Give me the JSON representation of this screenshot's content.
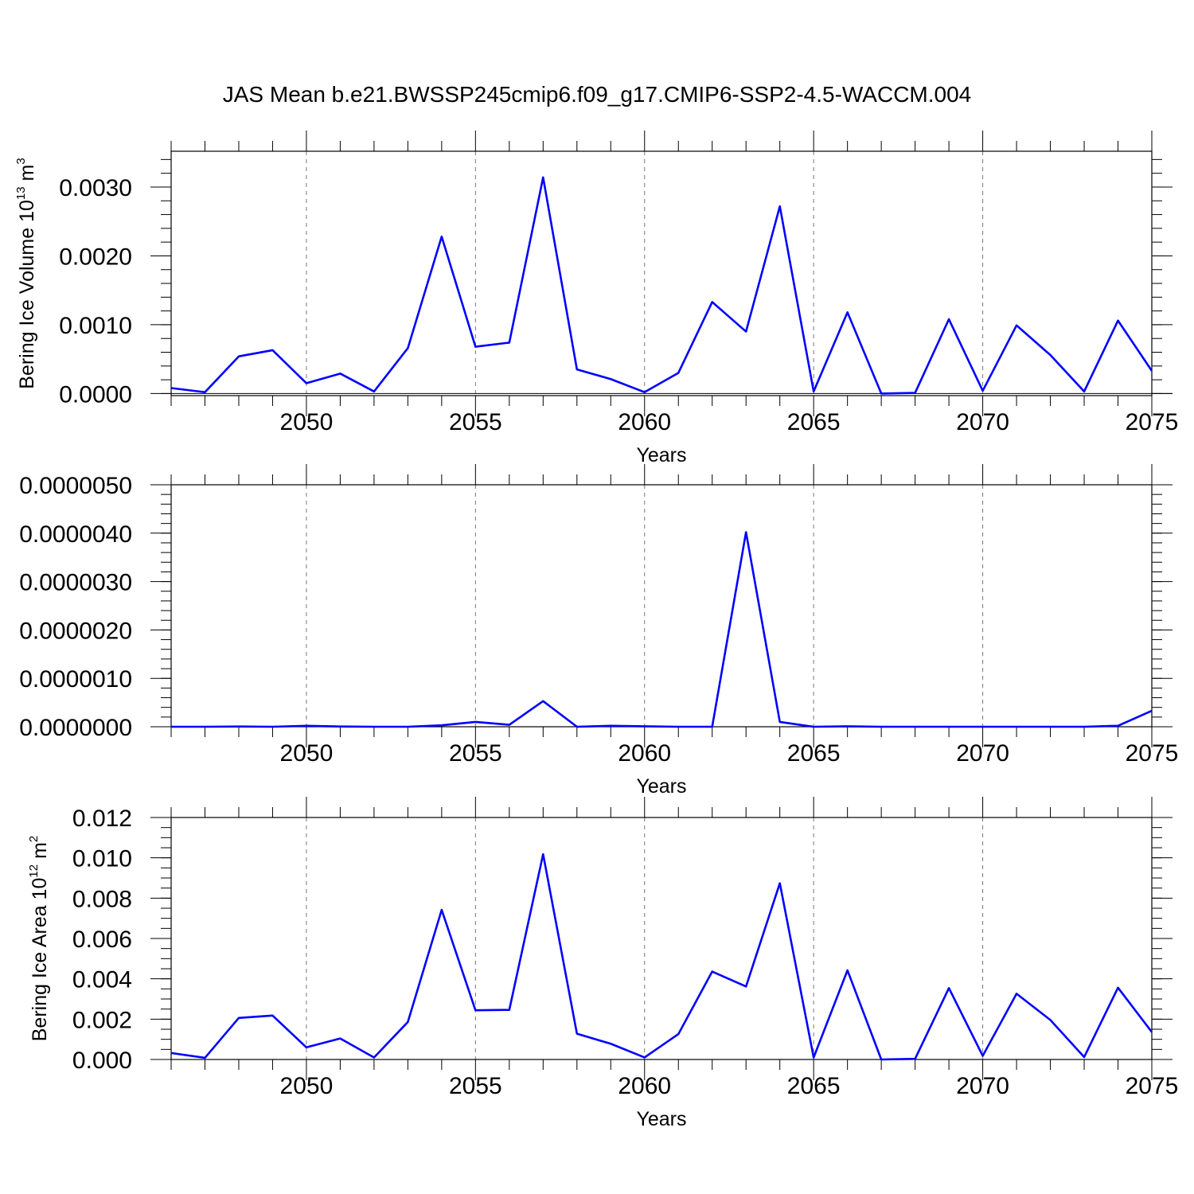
{
  "title": "JAS Mean b.e21.BWSSP245cmip6.f09_g17.CMIP6-SSP2-4.5-WACCM.004",
  "line_color": "#0000ff",
  "chart_data": [
    {
      "type": "line",
      "title": "",
      "xlabel": "Years",
      "ylabel": "Bering Ice Volume 10",
      "ylabel_exponent": "13",
      "ylabel_unit": "m",
      "ylabel_unit_exponent": "3",
      "xlim": [
        2046,
        2075
      ],
      "ylim": [
        -3e-05,
        0.00352
      ],
      "y_ticks": [
        0.0,
        0.001,
        0.002,
        0.003
      ],
      "y_tick_labels": [
        "0.0000",
        "0.0010",
        "0.0020",
        "0.0030"
      ],
      "y_minor_step": 0.0002,
      "x_ticks": [
        2050,
        2055,
        2060,
        2065,
        2070,
        2075
      ],
      "x_tick_labels": [
        "2050",
        "2055",
        "2060",
        "2065",
        "2070",
        "2075"
      ],
      "grid": "vertical-dashed",
      "x": [
        2046,
        2047,
        2048,
        2049,
        2050,
        2051,
        2052,
        2053,
        2054,
        2055,
        2056,
        2057,
        2058,
        2059,
        2060,
        2061,
        2062,
        2063,
        2064,
        2065,
        2066,
        2067,
        2068,
        2069,
        2070,
        2071,
        2072,
        2073,
        2074,
        2075
      ],
      "series": [
        {
          "values": [
            8e-05,
            2e-05,
            0.00054,
            0.00063,
            0.00015,
            0.00029,
            3e-05,
            0.00066,
            0.00228,
            0.00068,
            0.00074,
            0.00314,
            0.00035,
            0.00021,
            2e-05,
            0.0003,
            0.00133,
            0.0009,
            0.00272,
            3e-05,
            0.00118,
            0.0,
            1e-05,
            0.00108,
            4e-05,
            0.00099,
            0.00056,
            3e-05,
            0.00106,
            0.00033
          ]
        }
      ]
    },
    {
      "type": "line",
      "title": "",
      "xlabel": "Years",
      "ylabel": "",
      "xlim": [
        2046,
        2075
      ],
      "ylim": [
        0.0,
        5e-06
      ],
      "y_ticks": [
        0.0,
        1e-06,
        2e-06,
        3e-06,
        4e-06,
        5e-06
      ],
      "y_tick_labels": [
        "0.0000000",
        "0.0000010",
        "0.0000020",
        "0.0000030",
        "0.0000040",
        "0.0000050"
      ],
      "y_minor_step": 2e-07,
      "x_ticks": [
        2050,
        2055,
        2060,
        2065,
        2070,
        2075
      ],
      "x_tick_labels": [
        "2050",
        "2055",
        "2060",
        "2065",
        "2070",
        "2075"
      ],
      "grid": "vertical-dashed",
      "x": [
        2046,
        2047,
        2048,
        2049,
        2050,
        2051,
        2052,
        2053,
        2054,
        2055,
        2056,
        2057,
        2058,
        2059,
        2060,
        2061,
        2062,
        2063,
        2064,
        2065,
        2066,
        2067,
        2068,
        2069,
        2070,
        2071,
        2072,
        2073,
        2074,
        2075
      ],
      "series": [
        {
          "values": [
            0.0,
            0.0,
            5e-09,
            0.0,
            2e-08,
            5e-09,
            0.0,
            0.0,
            3e-08,
            1e-07,
            4e-08,
            5.3e-07,
            0.0,
            2e-08,
            1e-08,
            0.0,
            0.0,
            4.02e-06,
            1e-07,
            0.0,
            1e-08,
            0.0,
            0.0,
            0.0,
            0.0,
            0.0,
            0.0,
            0.0,
            2e-08,
            3.3e-07
          ]
        }
      ]
    },
    {
      "type": "line",
      "title": "",
      "xlabel": "Years",
      "ylabel": "Bering Ice Area 10",
      "ylabel_exponent": "12",
      "ylabel_unit": "m",
      "ylabel_unit_exponent": "2",
      "xlim": [
        2046,
        2075
      ],
      "ylim": [
        0.0,
        0.012
      ],
      "y_ticks": [
        0.0,
        0.002,
        0.004,
        0.006,
        0.008,
        0.01,
        0.012
      ],
      "y_tick_labels": [
        "0.000",
        "0.002",
        "0.004",
        "0.006",
        "0.008",
        "0.010",
        "0.012"
      ],
      "y_minor_step": 0.0005,
      "x_ticks": [
        2050,
        2055,
        2060,
        2065,
        2070,
        2075
      ],
      "x_tick_labels": [
        "2050",
        "2055",
        "2060",
        "2065",
        "2070",
        "2075"
      ],
      "grid": "vertical-dashed",
      "x": [
        2046,
        2047,
        2048,
        2049,
        2050,
        2051,
        2052,
        2053,
        2054,
        2055,
        2056,
        2057,
        2058,
        2059,
        2060,
        2061,
        2062,
        2063,
        2064,
        2065,
        2066,
        2067,
        2068,
        2069,
        2070,
        2071,
        2072,
        2073,
        2074,
        2075
      ],
      "series": [
        {
          "values": [
            0.00032,
            8e-05,
            0.00206,
            0.00218,
            0.0006,
            0.00104,
            0.0001,
            0.00186,
            0.00742,
            0.00244,
            0.00246,
            0.01018,
            0.00128,
            0.00078,
            0.0001,
            0.00126,
            0.00436,
            0.00362,
            0.00874,
            0.0001,
            0.00442,
            0.0,
            3e-05,
            0.00354,
            0.00018,
            0.00326,
            0.00196,
            0.00012,
            0.00356,
            0.00136
          ]
        }
      ]
    }
  ]
}
